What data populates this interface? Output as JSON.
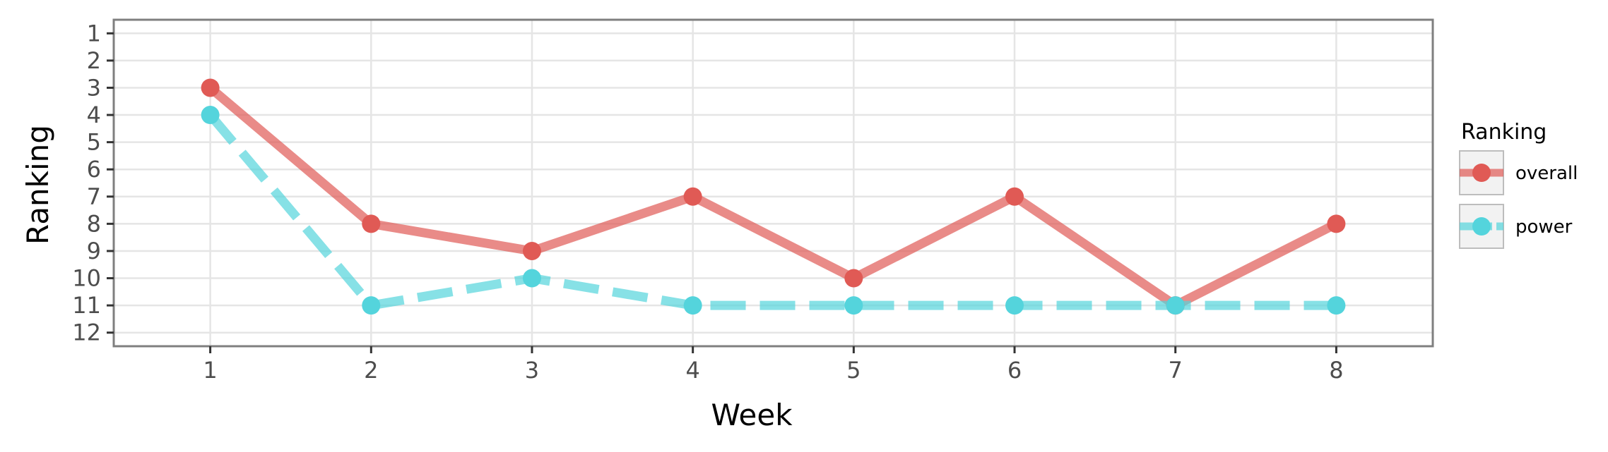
{
  "chart_data": {
    "type": "line",
    "xlabel": "Week",
    "ylabel": "Ranking",
    "x": [
      1,
      2,
      3,
      4,
      5,
      6,
      7,
      8
    ],
    "xlim": [
      0.4,
      8.6
    ],
    "ylim": [
      12.5,
      0.5
    ],
    "y_reversed": true,
    "y_ticks": [
      1,
      2,
      3,
      4,
      5,
      6,
      7,
      8,
      9,
      10,
      11,
      12
    ],
    "x_ticks": [
      1,
      2,
      3,
      4,
      5,
      6,
      7,
      8
    ],
    "grid": true,
    "legend_position": "right",
    "legend_title": "Ranking",
    "series": [
      {
        "name": "overall",
        "values": [
          3,
          8,
          9,
          7,
          10,
          7,
          11,
          8
        ],
        "color": "#e05a55",
        "line_style": "solid"
      },
      {
        "name": "power",
        "values": [
          4,
          11,
          10,
          11,
          11,
          11,
          11,
          11
        ],
        "color": "#54d4dc",
        "line_style": "dashed"
      }
    ]
  }
}
